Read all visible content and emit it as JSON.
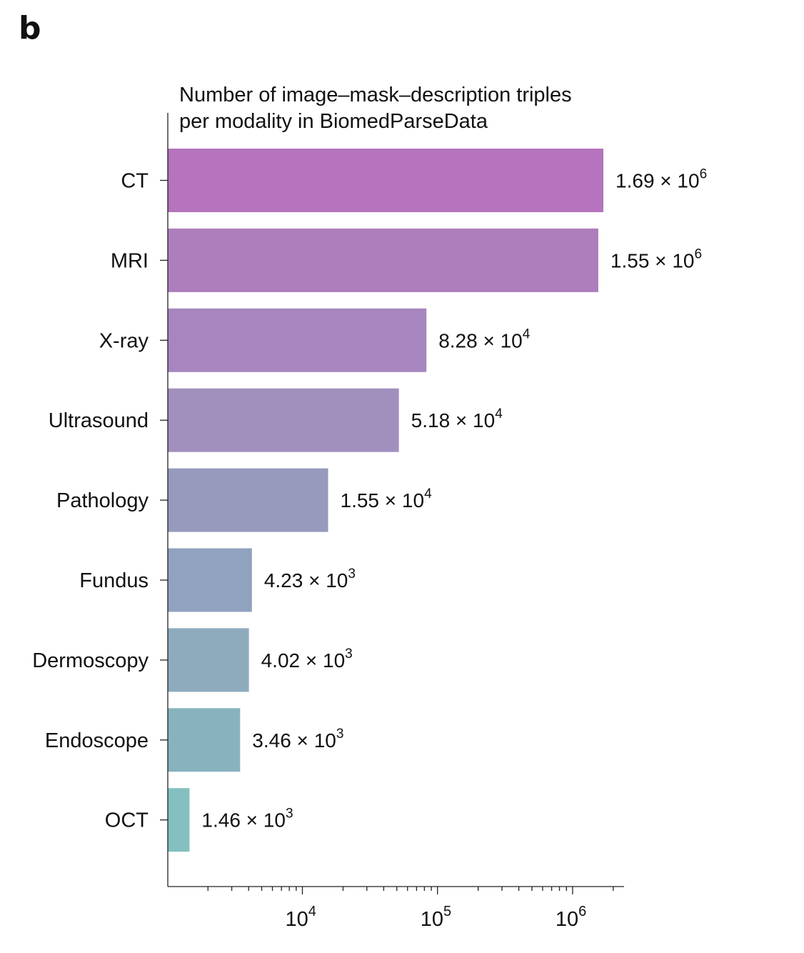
{
  "panel_letter": "b",
  "chart_data": {
    "type": "bar",
    "orientation": "horizontal",
    "title_lines": [
      "Number of image–mask–description triples",
      "per modality in BiomedParseData"
    ],
    "categories": [
      "CT",
      "MRI",
      "X-ray",
      "Ultrasound",
      "Pathology",
      "Fundus",
      "Dermoscopy",
      "Endoscope",
      "OCT"
    ],
    "values": [
      1690000,
      1550000,
      82800,
      51800,
      15500,
      4230,
      4020,
      3460,
      1460
    ],
    "value_labels": [
      {
        "mantissa": "1.69",
        "exponent": "6"
      },
      {
        "mantissa": "1.55",
        "exponent": "6"
      },
      {
        "mantissa": "8.28",
        "exponent": "4"
      },
      {
        "mantissa": "5.18",
        "exponent": "4"
      },
      {
        "mantissa": "1.55",
        "exponent": "4"
      },
      {
        "mantissa": "4.23",
        "exponent": "3"
      },
      {
        "mantissa": "4.02",
        "exponent": "3"
      },
      {
        "mantissa": "3.46",
        "exponent": "3"
      },
      {
        "mantissa": "1.46",
        "exponent": "3"
      }
    ],
    "colors": [
      "#b574bd",
      "#ae7dbc",
      "#a786bf",
      "#a190be",
      "#9799bd",
      "#91a2be",
      "#8dabbd",
      "#87b3bd",
      "#83c0bf"
    ],
    "xscale": "log",
    "xlim": [
      1300,
      2500000
    ],
    "major_ticks": [
      {
        "value": 10000,
        "base": "10",
        "exp": "4"
      },
      {
        "value": 100000,
        "base": "10",
        "exp": "5"
      },
      {
        "value": 1000000,
        "base": "10",
        "exp": "6"
      }
    ],
    "grid": false,
    "legend": "none"
  }
}
